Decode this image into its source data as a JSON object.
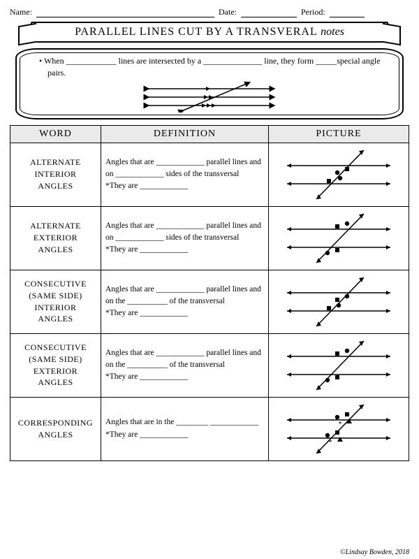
{
  "header": {
    "name_label": "Name:",
    "date_label": "Date:",
    "period_label": "Period:"
  },
  "banner": {
    "main": "PARALLEL LINES CUT BY A TRANSVERAL",
    "cursive": "notes"
  },
  "intro": {
    "text": "• When ____________ lines are intersected by a ______________ line, they form _____special angle pairs."
  },
  "column_headers": {
    "word": "WORD",
    "definition": "DEFINITION",
    "picture": "PICTURE"
  },
  "rows": [
    {
      "word": "ALTERNATE\nINTERIOR\nANGLES",
      "def": "Angles that are ____________ parallel lines and on ____________ sides of the transversal\n*They are ____________",
      "markers": [
        {
          "shape": "circle",
          "x": 78,
          "y": 38
        },
        {
          "shape": "square",
          "x": 92,
          "y": 33
        },
        {
          "shape": "square",
          "x": 66,
          "y": 50
        },
        {
          "shape": "circle",
          "x": 82,
          "y": 46
        }
      ]
    },
    {
      "word": "ALTERNATE\nEXTERIOR\nANGLES",
      "def": "Angles that are ____________ parallel lines and on ____________ sides of the transversal\n*They are ____________",
      "markers": [
        {
          "shape": "square",
          "x": 78,
          "y": 24
        },
        {
          "shape": "circle",
          "x": 92,
          "y": 20
        },
        {
          "shape": "circle",
          "x": 64,
          "y": 62
        },
        {
          "shape": "square",
          "x": 78,
          "y": 58
        }
      ]
    },
    {
      "word": "CONSECUTIVE\n(SAME SIDE)\nINTERIOR\nANGLES",
      "def": "Angles that are ____________ parallel lines and on the __________ of the transversal\n*They are ____________",
      "markers": [
        {
          "shape": "square",
          "x": 78,
          "y": 38
        },
        {
          "shape": "circle",
          "x": 92,
          "y": 33
        },
        {
          "shape": "square",
          "x": 66,
          "y": 50
        },
        {
          "shape": "circle",
          "x": 80,
          "y": 46
        }
      ]
    },
    {
      "word": "CONSECUTIVE\n(SAME SIDE)\nEXTERIOR\nANGLES",
      "def": "Angles that are ____________ parallel lines and on the __________ of the transversal\n*They are ____________",
      "markers": [
        {
          "shape": "square",
          "x": 78,
          "y": 24
        },
        {
          "shape": "circle",
          "x": 92,
          "y": 20
        },
        {
          "shape": "circle",
          "x": 64,
          "y": 62
        },
        {
          "shape": "square",
          "x": 78,
          "y": 58
        }
      ]
    },
    {
      "word": "CORRESPONDING\nANGLES",
      "def": "Angles that are in the ________ ____________\n*They are ____________",
      "markers": [
        {
          "shape": "circle",
          "x": 78,
          "y": 24
        },
        {
          "shape": "square",
          "x": 92,
          "y": 20
        },
        {
          "shape": "triangle",
          "x": 95,
          "y": 30
        },
        {
          "shape": "star",
          "x": 82,
          "y": 34
        },
        {
          "shape": "circle",
          "x": 64,
          "y": 50
        },
        {
          "shape": "square",
          "x": 78,
          "y": 46
        },
        {
          "shape": "triangle",
          "x": 82,
          "y": 56
        },
        {
          "shape": "star",
          "x": 68,
          "y": 60
        }
      ]
    }
  ],
  "diagram_style": {
    "line_color": "#000000",
    "line_width": 1.5,
    "arrow_size": 5
  },
  "copyright": "©Lindsay Bowden, 2018"
}
